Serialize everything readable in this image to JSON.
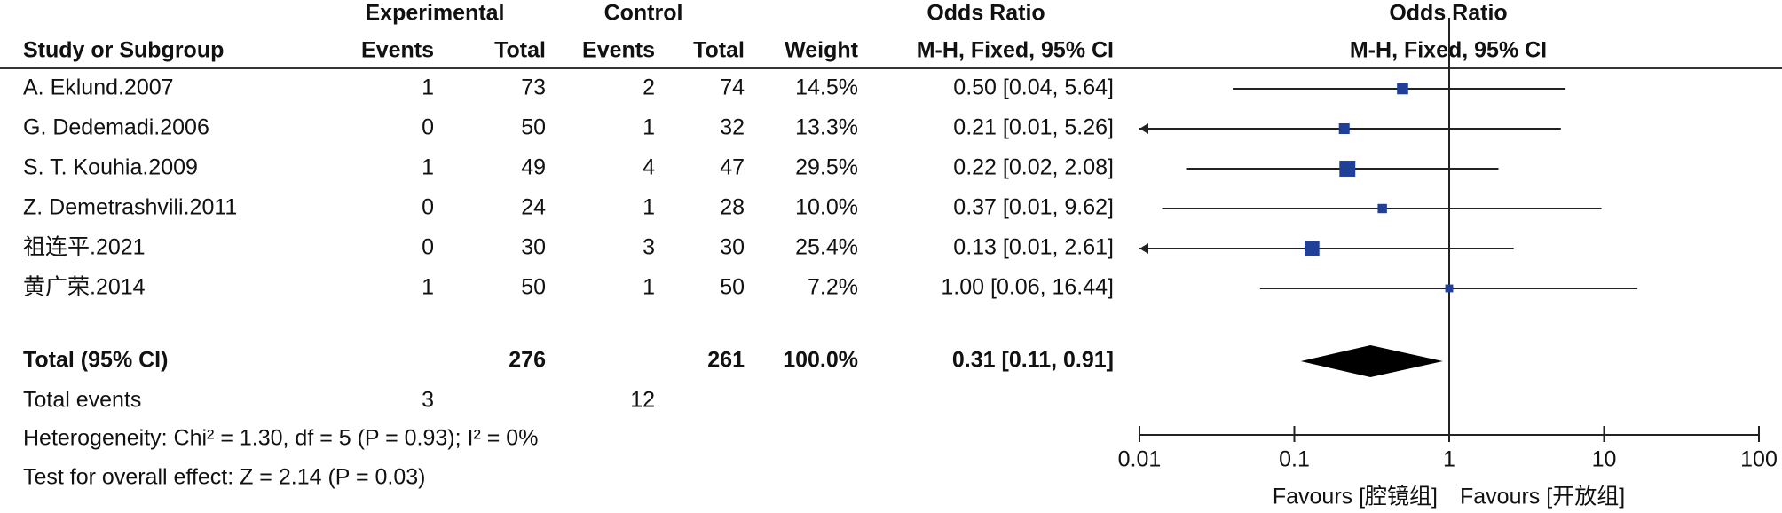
{
  "chart_data": {
    "type": "forest",
    "group_headers": {
      "experimental": "Experimental",
      "control": "Control",
      "odds_ratio": "Odds Ratio",
      "plot": "Odds Ratio"
    },
    "column_headers": {
      "study": "Study or Subgroup",
      "exp_events": "Events",
      "exp_total": "Total",
      "ctrl_events": "Events",
      "ctrl_total": "Total",
      "weight": "Weight",
      "or_ci": "M-H, Fixed, 95% CI",
      "plot": "M-H, Fixed, 95% CI"
    },
    "color": "#1f3f99",
    "studies": [
      {
        "name": "A. Eklund.2007",
        "exp_events": 1,
        "exp_total": 73,
        "ctrl_events": 2,
        "ctrl_total": 74,
        "weight": 14.5,
        "weight_label": "14.5%",
        "or": 0.5,
        "ci_low": 0.04,
        "ci_high": 5.64,
        "or_label": "0.50 [0.04, 5.64]"
      },
      {
        "name": "G. Dedemadi.2006",
        "exp_events": 0,
        "exp_total": 50,
        "ctrl_events": 1,
        "ctrl_total": 32,
        "weight": 13.3,
        "weight_label": "13.3%",
        "or": 0.21,
        "ci_low": 0.008,
        "ci_high": 5.26,
        "or_label": "0.21 [0.01, 5.26]"
      },
      {
        "name": "S. T. Kouhia.2009",
        "exp_events": 1,
        "exp_total": 49,
        "ctrl_events": 4,
        "ctrl_total": 47,
        "weight": 29.5,
        "weight_label": "29.5%",
        "or": 0.22,
        "ci_low": 0.02,
        "ci_high": 2.08,
        "or_label": "0.22 [0.02, 2.08]"
      },
      {
        "name": "Z. Demetrashvili.2011",
        "exp_events": 0,
        "exp_total": 24,
        "ctrl_events": 1,
        "ctrl_total": 28,
        "weight": 10.0,
        "weight_label": "10.0%",
        "or": 0.37,
        "ci_low": 0.014,
        "ci_high": 9.62,
        "or_label": "0.37 [0.01, 9.62]"
      },
      {
        "name": "祖连平.2021",
        "exp_events": 0,
        "exp_total": 30,
        "ctrl_events": 3,
        "ctrl_total": 30,
        "weight": 25.4,
        "weight_label": "25.4%",
        "or": 0.13,
        "ci_low": 0.008,
        "ci_high": 2.61,
        "or_label": "0.13 [0.01, 2.61]"
      },
      {
        "name": "黄广荣.2014",
        "exp_events": 1,
        "exp_total": 50,
        "ctrl_events": 1,
        "ctrl_total": 50,
        "weight": 7.2,
        "weight_label": "7.2%",
        "or": 1.0,
        "ci_low": 0.06,
        "ci_high": 16.44,
        "or_label": "1.00 [0.06, 16.44]"
      }
    ],
    "total": {
      "name": "Total (95% CI)",
      "exp_total": 276,
      "ctrl_total": 261,
      "weight": 100.0,
      "weight_label": "100.0%",
      "or": 0.31,
      "ci_low": 0.11,
      "ci_high": 0.91,
      "or_label": "0.31 [0.11, 0.91]"
    },
    "total_events": {
      "name": "Total events",
      "exp_events": 3,
      "ctrl_events": 12
    },
    "heterogeneity": "Heterogeneity: Chi² = 1.30, df = 5 (P = 0.93); I² = 0%",
    "overall_effect": "Test for overall effect: Z = 2.14 (P = 0.03)",
    "log_scale": true,
    "xlim": [
      0.01,
      100
    ],
    "xticks": [
      0.01,
      0.1,
      1,
      10,
      100
    ],
    "favours_left": "Favours [腔镜组]",
    "favours_right": "Favours [开放组]"
  }
}
